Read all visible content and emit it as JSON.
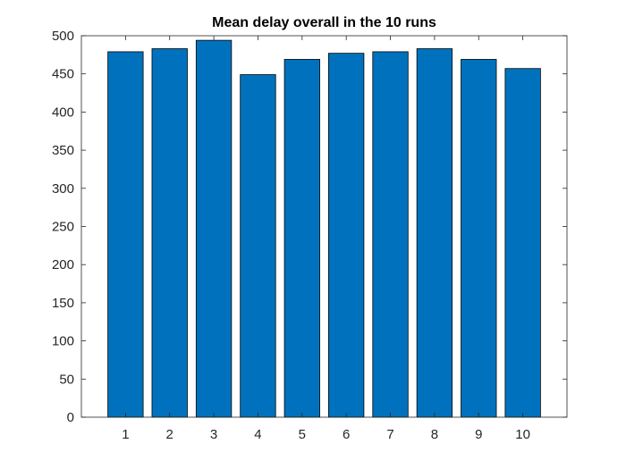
{
  "chart_data": {
    "type": "bar",
    "title": "Mean delay overall in the 10 runs",
    "xlabel": "",
    "ylabel": "",
    "categories": [
      "1",
      "2",
      "3",
      "4",
      "5",
      "6",
      "7",
      "8",
      "9",
      "10"
    ],
    "values": [
      479,
      483,
      494,
      449,
      469,
      477,
      479,
      483,
      469,
      457
    ],
    "xlim": [
      0,
      11
    ],
    "ylim": [
      0,
      500
    ],
    "yticks": [
      0,
      50,
      100,
      150,
      200,
      250,
      300,
      350,
      400,
      450,
      500
    ],
    "grid": false,
    "legend": "none",
    "colors": {
      "bar_fill": "#0072BD",
      "bar_edge": "#000000",
      "axes": "#262626",
      "background": "#ffffff"
    }
  }
}
